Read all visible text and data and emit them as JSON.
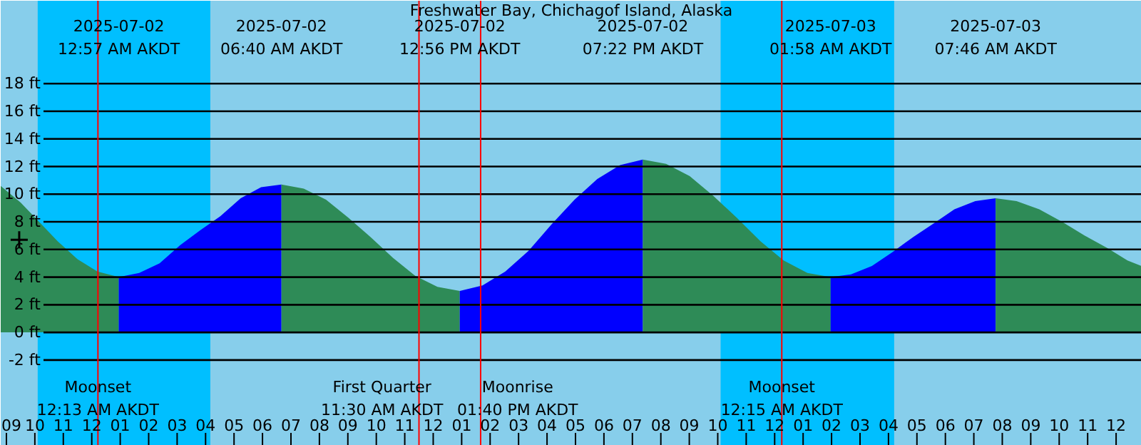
{
  "chart_data": {
    "type": "area",
    "title": "Freshwater Bay, Chichagof Island, Alaska",
    "xlim": [
      "2025-07-01T20:48",
      "2025-07-03T12:54"
    ],
    "ylim": [
      -8.2,
      24.0
    ],
    "xticks": [
      {
        "value": "2025-07-01T21:00",
        "label": "09"
      },
      {
        "value": "2025-07-01T22:00",
        "label": "10"
      },
      {
        "value": "2025-07-01T23:00",
        "label": "11"
      },
      {
        "value": "2025-07-02T00:00",
        "label": "12"
      },
      {
        "value": "2025-07-02T01:00",
        "label": "01"
      },
      {
        "value": "2025-07-02T02:00",
        "label": "02"
      },
      {
        "value": "2025-07-02T03:00",
        "label": "03"
      },
      {
        "value": "2025-07-02T04:00",
        "label": "04"
      },
      {
        "value": "2025-07-02T05:00",
        "label": "05"
      },
      {
        "value": "2025-07-02T06:00",
        "label": "06"
      },
      {
        "value": "2025-07-02T07:00",
        "label": "07"
      },
      {
        "value": "2025-07-02T08:00",
        "label": "08"
      },
      {
        "value": "2025-07-02T09:00",
        "label": "09"
      },
      {
        "value": "2025-07-02T10:00",
        "label": "10"
      },
      {
        "value": "2025-07-02T11:00",
        "label": "11"
      },
      {
        "value": "2025-07-02T12:00",
        "label": "12"
      },
      {
        "value": "2025-07-02T13:00",
        "label": "01"
      },
      {
        "value": "2025-07-02T14:00",
        "label": "02"
      },
      {
        "value": "2025-07-02T15:00",
        "label": "03"
      },
      {
        "value": "2025-07-02T16:00",
        "label": "04"
      },
      {
        "value": "2025-07-02T17:00",
        "label": "05"
      },
      {
        "value": "2025-07-02T18:00",
        "label": "06"
      },
      {
        "value": "2025-07-02T19:00",
        "label": "07"
      },
      {
        "value": "2025-07-02T20:00",
        "label": "08"
      },
      {
        "value": "2025-07-02T21:00",
        "label": "09"
      },
      {
        "value": "2025-07-02T22:00",
        "label": "10"
      },
      {
        "value": "2025-07-02T23:00",
        "label": "11"
      },
      {
        "value": "2025-07-03T00:00",
        "label": "12"
      },
      {
        "value": "2025-07-03T01:00",
        "label": "01"
      },
      {
        "value": "2025-07-03T02:00",
        "label": "02"
      },
      {
        "value": "2025-07-03T03:00",
        "label": "03"
      },
      {
        "value": "2025-07-03T04:00",
        "label": "04"
      },
      {
        "value": "2025-07-03T05:00",
        "label": "05"
      },
      {
        "value": "2025-07-03T06:00",
        "label": "06"
      },
      {
        "value": "2025-07-03T07:00",
        "label": "07"
      },
      {
        "value": "2025-07-03T08:00",
        "label": "08"
      },
      {
        "value": "2025-07-03T09:00",
        "label": "09"
      },
      {
        "value": "2025-07-03T10:00",
        "label": "10"
      },
      {
        "value": "2025-07-03T11:00",
        "label": "11"
      },
      {
        "value": "2025-07-03T12:00",
        "label": "12"
      }
    ],
    "yticks": [
      {
        "value": -2,
        "label": "-2 ft"
      },
      {
        "value": 0,
        "label": "0 ft"
      },
      {
        "value": 2,
        "label": "2 ft"
      },
      {
        "value": 4,
        "label": "4 ft"
      },
      {
        "value": 6,
        "label": "6 ft"
      },
      {
        "value": 8,
        "label": "8 ft"
      },
      {
        "value": 10,
        "label": "10 ft"
      },
      {
        "value": 12,
        "label": "12 ft"
      },
      {
        "value": 14,
        "label": "14 ft"
      },
      {
        "value": 16,
        "label": "16 ft"
      },
      {
        "value": 18,
        "label": "18 ft"
      }
    ],
    "grid": "y",
    "bands": [
      {
        "axis": "x",
        "from": "2025-07-01T22:06",
        "to": "2025-07-02T04:10",
        "color": "#00bfff"
      },
      {
        "axis": "x",
        "from": "2025-07-02T22:06",
        "to": "2025-07-03T04:12",
        "color": "#00bfff"
      }
    ],
    "series": [
      {
        "color": "#2e8b57",
        "x": [
          "2025-07-01T20:48",
          "2025-07-01T21:30",
          "2025-07-01T22:06",
          "2025-07-01T22:48",
          "2025-07-01T23:30",
          "2025-07-02T00:12",
          "2025-07-02T00:57"
        ],
        "values": [
          10.6,
          9.4,
          8.1,
          6.6,
          5.3,
          4.4,
          4.0
        ]
      },
      {
        "color": "#0000ff",
        "x": [
          "2025-07-02T00:57",
          "2025-07-02T01:40",
          "2025-07-02T02:23",
          "2025-07-02T03:06",
          "2025-07-02T03:49",
          "2025-07-02T04:31",
          "2025-07-02T05:14",
          "2025-07-02T05:57",
          "2025-07-02T06:40"
        ],
        "values": [
          4.0,
          4.3,
          5.0,
          6.3,
          7.4,
          8.4,
          9.7,
          10.5,
          10.7
        ]
      },
      {
        "color": "#2e8b57",
        "x": [
          "2025-07-02T06:40",
          "2025-07-02T07:27",
          "2025-07-02T08:14",
          "2025-07-02T09:01",
          "2025-07-02T09:48",
          "2025-07-02T10:35",
          "2025-07-02T11:22",
          "2025-07-02T12:09",
          "2025-07-02T12:56"
        ],
        "values": [
          10.7,
          10.4,
          9.6,
          8.3,
          6.9,
          5.4,
          4.1,
          3.3,
          3.0
        ]
      },
      {
        "color": "#0000ff",
        "x": [
          "2025-07-02T12:56",
          "2025-07-02T13:44",
          "2025-07-02T14:32",
          "2025-07-02T15:21",
          "2025-07-02T16:09",
          "2025-07-02T16:58",
          "2025-07-02T17:46",
          "2025-07-02T18:34",
          "2025-07-02T19:22"
        ],
        "values": [
          3.0,
          3.4,
          4.4,
          5.9,
          7.8,
          9.6,
          11.1,
          12.1,
          12.5
        ]
      },
      {
        "color": "#2e8b57",
        "x": [
          "2025-07-02T19:22",
          "2025-07-02T20:11",
          "2025-07-02T21:01",
          "2025-07-02T21:50",
          "2025-07-02T22:40",
          "2025-07-02T23:30",
          "2025-07-03T00:19",
          "2025-07-03T01:09",
          "2025-07-03T01:58"
        ],
        "values": [
          12.5,
          12.2,
          11.3,
          9.9,
          8.3,
          6.6,
          5.2,
          4.3,
          4.0
        ]
      },
      {
        "color": "#0000ff",
        "x": [
          "2025-07-03T01:58",
          "2025-07-03T02:41",
          "2025-07-03T03:25",
          "2025-07-03T04:08",
          "2025-07-03T04:52",
          "2025-07-03T05:36",
          "2025-07-03T06:19",
          "2025-07-03T07:03",
          "2025-07-03T07:46"
        ],
        "values": [
          4.0,
          4.2,
          4.8,
          5.8,
          6.9,
          7.9,
          8.9,
          9.5,
          9.7
        ]
      },
      {
        "color": "#2e8b57",
        "x": [
          "2025-07-03T07:46",
          "2025-07-03T08:30",
          "2025-07-03T09:18",
          "2025-07-03T10:06",
          "2025-07-03T10:54",
          "2025-07-03T11:42",
          "2025-07-03T12:24",
          "2025-07-03T12:54"
        ],
        "values": [
          9.7,
          9.5,
          8.9,
          8.0,
          7.0,
          6.1,
          5.2,
          4.8
        ]
      },
      {
        "type": "scatter",
        "marker": "cross",
        "color": "#000000",
        "x": [
          "2025-07-01T21:27"
        ],
        "values": [
          6.7
        ]
      }
    ],
    "ref_lines": [
      {
        "axis": "x",
        "value": "2025-07-02T00:13",
        "label": "Moonset\n12:13 AM AKDT",
        "color": "#ff0000"
      },
      {
        "axis": "x",
        "value": "2025-07-02T11:30",
        "label": "First Quarter\n11:30 AM AKDT",
        "color": "#ff0000"
      },
      {
        "axis": "x",
        "value": "2025-07-02T13:40",
        "label": "Moonrise\n01:40 PM AKDT",
        "color": "#ff0000"
      },
      {
        "axis": "x",
        "value": "2025-07-03T00:15",
        "label": "Moonset\n12:15 AM AKDT",
        "color": "#ff0000"
      }
    ],
    "annotations": [
      "2025-07-02\n12:57 AM AKDT",
      "2025-07-02\n06:40 AM AKDT",
      "2025-07-02\n12:56 PM AKDT",
      "2025-07-02\n07:22 PM AKDT",
      "2025-07-03\n01:58 AM AKDT",
      "2025-07-03\n07:46 AM AKDT"
    ]
  }
}
